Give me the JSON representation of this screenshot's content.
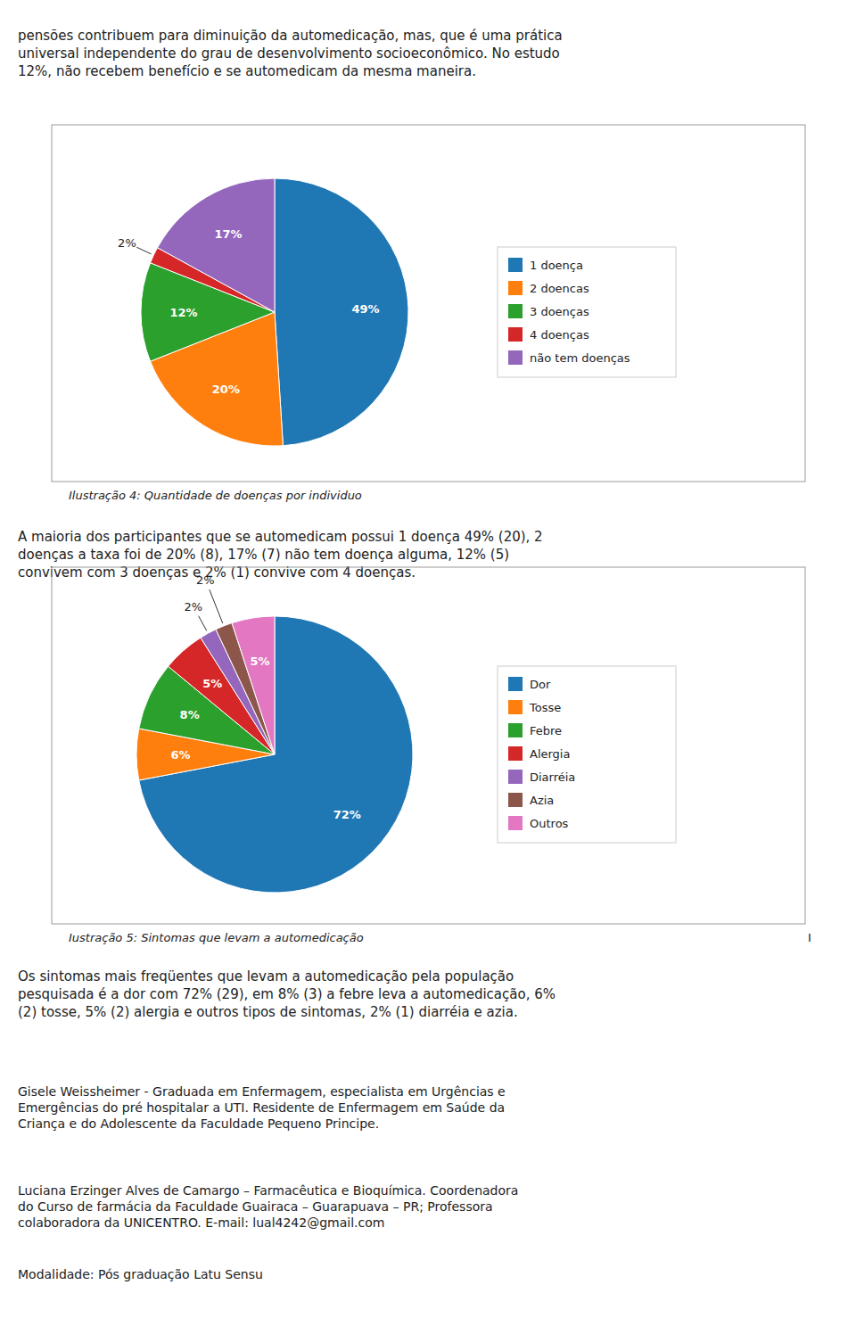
{
  "texts": [
    "pensões contribuem para diminuição da automedicação, mas, que é uma prática\nuniversal independente do grau de desenvolvimento socioeconômico. No estudo\n12%, não recebem benefício e se automedicam da mesma maneira.",
    "A maioria dos participantes que se automedicam possui 1 doença 49% (20), 2\ndoenças a taxa foi de 20% (8), 17% (7) não tem doença alguma, 12% (5)\nconvivem com 3 doenças e 2% (1) convive com 4 doenças.",
    "Os sintomas mais freqüentes que levam a automedicação pela população\npesquisada é a dor com 72% (29), em 8% (3) a febre leva a automedicação, 6%\n(2) tosse, 5% (2) alergia e outros tipos de sintomas, 2% (1) diarréia e azia.",
    "Gisele Weissheimer - Graduada em Enfermagem, especialista em Urgências e\nEmergências do pré hospitalar a UTI. Residente de Enfermagem em Saúde da\nCriança e do Adolescente da Faculdade Pequeno Principe.",
    "Luciana Erzinger Alves de Camargo – Farmacêutica e Bioquímica. Coordenadora\ndo Curso de farmácia da Faculdade Guairaca – Guarapuava – PR; Professora\ncolaboradora da UNICENTRO. E-mail: lual4242@gmail.com",
    "Modalidade: Pós graduação Latu Sensu"
  ],
  "chart_data": [
    {
      "type": "pie",
      "title": "Ilustração 4: Quantidade de doenças por individuo",
      "categories": [
        "1 doença",
        "2 doencas",
        "3 doenças",
        "4 doenças",
        "não tem doenças"
      ],
      "values": [
        49,
        20,
        12,
        2,
        17
      ],
      "value_labels": [
        "49%",
        "20%",
        "12%",
        "2%",
        "17%"
      ],
      "data_labels": true,
      "legend": "right"
    },
    {
      "type": "pie",
      "title": "Iustração 5: Sintomas que levam a automedicação",
      "categories": [
        "Dor",
        "Tosse",
        "Febre",
        "Alergia",
        "Diarréia",
        "Azia",
        "Outros"
      ],
      "values": [
        72,
        6,
        8,
        5,
        2,
        2,
        5
      ],
      "value_labels": [
        "72%",
        "6%",
        "8%",
        "5%",
        "2%",
        "2%",
        "5%"
      ],
      "data_labels": true,
      "legend": "right",
      "annotations": [
        "I"
      ]
    }
  ]
}
